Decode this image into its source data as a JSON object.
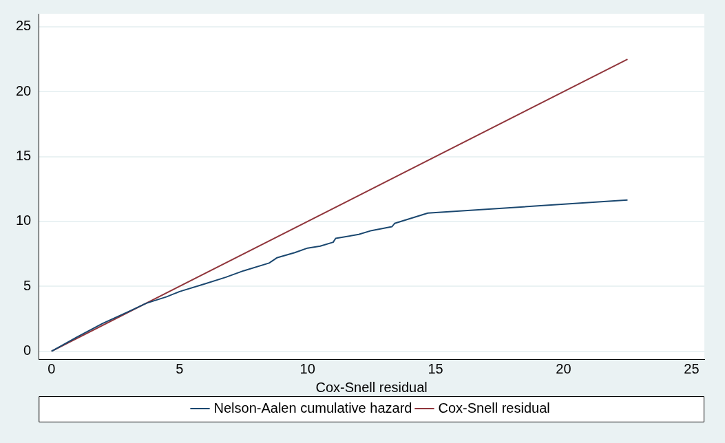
{
  "chart_data": {
    "type": "line",
    "xlabel": "Cox-Snell residual",
    "xlim": [
      -0.5,
      25.5
    ],
    "xticks": [
      0,
      5,
      10,
      15,
      20,
      25
    ],
    "ylim": [
      -0.6,
      26
    ],
    "yticks": [
      0,
      5,
      10,
      15,
      20,
      25
    ],
    "grid": "y",
    "legend": "bottom",
    "marker": "none",
    "line_style": "solid",
    "series": [
      {
        "name": "Nelson-Aalen cumulative hazard",
        "color": "#1a476f",
        "x": [
          0,
          1,
          2,
          3,
          3.7,
          4.5,
          5,
          6,
          6.8,
          7.5,
          8.5,
          8.8,
          9.5,
          10,
          10.5,
          11,
          11.1,
          12,
          12.5,
          13.3,
          13.4,
          14.7,
          22.5
        ],
        "values": [
          0,
          1.1,
          2.15,
          3.05,
          3.7,
          4.2,
          4.6,
          5.2,
          5.7,
          6.2,
          6.8,
          7.2,
          7.6,
          7.95,
          8.1,
          8.4,
          8.7,
          9.0,
          9.3,
          9.6,
          9.85,
          10.65,
          11.65
        ]
      },
      {
        "name": "Cox-Snell residual",
        "color": "#90353b",
        "x": [
          0,
          22.5
        ],
        "values": [
          0,
          22.5
        ]
      }
    ]
  }
}
